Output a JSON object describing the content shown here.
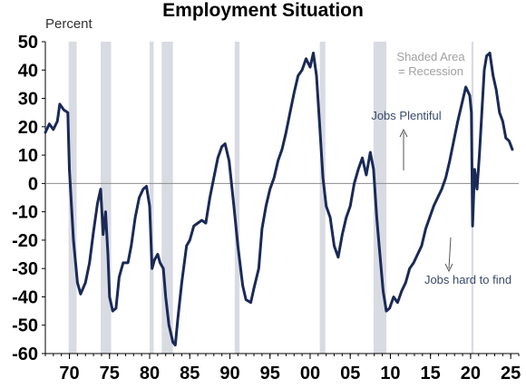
{
  "chart_data": {
    "type": "line",
    "title": "Employment Situation",
    "unit_label": "Percent",
    "xlim": [
      1967,
      2026
    ],
    "ylim": [
      -60,
      50
    ],
    "y_ticks": [
      50,
      40,
      30,
      20,
      10,
      0,
      -10,
      -20,
      -30,
      -40,
      -50,
      -60
    ],
    "x_ticks": [
      {
        "value": 1970,
        "label": "70"
      },
      {
        "value": 1975,
        "label": "75"
      },
      {
        "value": 1980,
        "label": "80"
      },
      {
        "value": 1985,
        "label": "85"
      },
      {
        "value": 1990,
        "label": "90"
      },
      {
        "value": 1995,
        "label": "95"
      },
      {
        "value": 2000,
        "label": "00"
      },
      {
        "value": 2005,
        "label": "05"
      },
      {
        "value": 2010,
        "label": "10"
      },
      {
        "value": 2015,
        "label": "15"
      },
      {
        "value": 2020,
        "label": "20"
      },
      {
        "value": 2025,
        "label": "25"
      }
    ],
    "recessions": [
      [
        1969.9,
        1970.9
      ],
      [
        1973.9,
        1975.2
      ],
      [
        1980.0,
        1980.5
      ],
      [
        1981.5,
        1982.9
      ],
      [
        1990.6,
        1991.2
      ],
      [
        2001.2,
        2001.9
      ],
      [
        2007.9,
        2009.5
      ],
      [
        2020.1,
        2020.35
      ]
    ],
    "series": [
      {
        "values": [
          [
            1967.0,
            18
          ],
          [
            1967.5,
            21
          ],
          [
            1968.0,
            19
          ],
          [
            1968.5,
            22
          ],
          [
            1968.8,
            28
          ],
          [
            1969.3,
            26
          ],
          [
            1969.8,
            25
          ],
          [
            1970.0,
            5
          ],
          [
            1970.5,
            -20
          ],
          [
            1971.0,
            -35
          ],
          [
            1971.4,
            -39
          ],
          [
            1972.0,
            -35
          ],
          [
            1972.5,
            -28
          ],
          [
            1973.0,
            -17
          ],
          [
            1973.5,
            -7
          ],
          [
            1973.9,
            -2
          ],
          [
            1974.2,
            -18
          ],
          [
            1974.5,
            -10
          ],
          [
            1974.8,
            -25
          ],
          [
            1975.0,
            -40
          ],
          [
            1975.4,
            -45
          ],
          [
            1975.8,
            -44
          ],
          [
            1976.2,
            -33
          ],
          [
            1976.7,
            -28
          ],
          [
            1977.3,
            -28
          ],
          [
            1977.7,
            -22
          ],
          [
            1978.2,
            -12
          ],
          [
            1978.7,
            -5
          ],
          [
            1979.2,
            -2
          ],
          [
            1979.6,
            -1
          ],
          [
            1980.0,
            -8
          ],
          [
            1980.3,
            -30
          ],
          [
            1980.6,
            -27
          ],
          [
            1981.0,
            -25
          ],
          [
            1981.3,
            -28
          ],
          [
            1981.7,
            -30
          ],
          [
            1982.0,
            -40
          ],
          [
            1982.4,
            -50
          ],
          [
            1982.9,
            -56
          ],
          [
            1983.2,
            -57
          ],
          [
            1983.5,
            -48
          ],
          [
            1984.0,
            -35
          ],
          [
            1984.6,
            -22
          ],
          [
            1985.0,
            -20
          ],
          [
            1985.5,
            -15
          ],
          [
            1986.0,
            -14
          ],
          [
            1986.5,
            -13
          ],
          [
            1987.0,
            -14
          ],
          [
            1987.5,
            -5
          ],
          [
            1988.0,
            2
          ],
          [
            1988.5,
            9
          ],
          [
            1989.0,
            13
          ],
          [
            1989.4,
            14
          ],
          [
            1989.9,
            8
          ],
          [
            1990.5,
            -8
          ],
          [
            1991.0,
            -22
          ],
          [
            1991.6,
            -36
          ],
          [
            1992.0,
            -41
          ],
          [
            1992.6,
            -42
          ],
          [
            1993.0,
            -37
          ],
          [
            1993.6,
            -30
          ],
          [
            1994.0,
            -16
          ],
          [
            1994.5,
            -8
          ],
          [
            1995.0,
            -2
          ],
          [
            1995.5,
            2
          ],
          [
            1996.0,
            8
          ],
          [
            1996.5,
            12
          ],
          [
            1997.0,
            18
          ],
          [
            1997.5,
            25
          ],
          [
            1998.0,
            32
          ],
          [
            1998.5,
            38
          ],
          [
            1999.0,
            40
          ],
          [
            1999.5,
            44
          ],
          [
            2000.0,
            41
          ],
          [
            2000.4,
            46
          ],
          [
            2000.8,
            38
          ],
          [
            2001.2,
            20
          ],
          [
            2001.6,
            2
          ],
          [
            2002.0,
            -8
          ],
          [
            2002.5,
            -12
          ],
          [
            2003.0,
            -22
          ],
          [
            2003.5,
            -26
          ],
          [
            2004.0,
            -18
          ],
          [
            2004.5,
            -12
          ],
          [
            2005.0,
            -8
          ],
          [
            2005.5,
            0
          ],
          [
            2006.0,
            5
          ],
          [
            2006.5,
            9
          ],
          [
            2007.0,
            3
          ],
          [
            2007.5,
            11
          ],
          [
            2007.9,
            5
          ],
          [
            2008.3,
            -12
          ],
          [
            2008.7,
            -25
          ],
          [
            2009.1,
            -38
          ],
          [
            2009.5,
            -45
          ],
          [
            2009.9,
            -44
          ],
          [
            2010.4,
            -40
          ],
          [
            2010.9,
            -42
          ],
          [
            2011.4,
            -38
          ],
          [
            2011.9,
            -35
          ],
          [
            2012.4,
            -30
          ],
          [
            2012.9,
            -28
          ],
          [
            2013.4,
            -25
          ],
          [
            2013.9,
            -22
          ],
          [
            2014.4,
            -16
          ],
          [
            2014.9,
            -12
          ],
          [
            2015.4,
            -8
          ],
          [
            2015.9,
            -5
          ],
          [
            2016.4,
            -2
          ],
          [
            2016.9,
            2
          ],
          [
            2017.4,
            8
          ],
          [
            2017.9,
            15
          ],
          [
            2018.4,
            22
          ],
          [
            2018.9,
            28
          ],
          [
            2019.4,
            34
          ],
          [
            2019.9,
            31
          ],
          [
            2020.1,
            25
          ],
          [
            2020.25,
            -15
          ],
          [
            2020.5,
            5
          ],
          [
            2020.8,
            -2
          ],
          [
            2021.1,
            10
          ],
          [
            2021.4,
            25
          ],
          [
            2021.7,
            40
          ],
          [
            2022.0,
            45
          ],
          [
            2022.4,
            46
          ],
          [
            2022.8,
            38
          ],
          [
            2023.2,
            33
          ],
          [
            2023.6,
            25
          ],
          [
            2024.0,
            22
          ],
          [
            2024.4,
            16
          ],
          [
            2024.8,
            15
          ],
          [
            2025.2,
            12
          ]
        ]
      }
    ],
    "annotations": {
      "shaded_area_line1": "Shaded Area",
      "shaded_area_line2": "= Recession",
      "jobs_plentiful": "Jobs Plentiful",
      "jobs_hard": "Jobs hard to find"
    },
    "colors": {
      "line": "#1a2a57",
      "recession": "#d9dbe3",
      "zero_line": "#8c8c8c",
      "annotation_text": "#3a4a6b",
      "shaded_label": "#a0a0a0",
      "arrow": "#555555"
    },
    "grid": false
  }
}
